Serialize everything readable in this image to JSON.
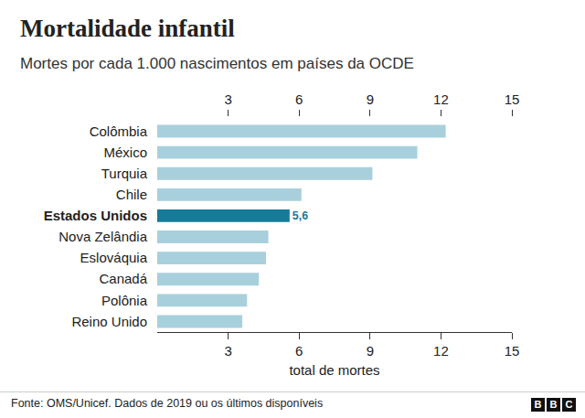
{
  "chart_data": {
    "type": "bar",
    "orientation": "horizontal",
    "title": "Mortalidade infantil",
    "subtitle": "Mortes por cada 1.000 nascimentos em países da OCDE",
    "x_label": "total de mortes",
    "source": "Fonte: OMS/Unicef. Dados de 2019 ou os últimos disponíveis",
    "logo": "BBC",
    "categories": [
      "Colômbia",
      "México",
      "Turquia",
      "Chile",
      "Estados Unidos",
      "Nova Zelândia",
      "Eslováquia",
      "Canadá",
      "Polônia",
      "Reino Unido"
    ],
    "values": [
      12.2,
      11.0,
      9.1,
      6.1,
      5.6,
      4.7,
      4.6,
      4.3,
      3.8,
      3.6
    ],
    "value_labels": [
      null,
      null,
      null,
      null,
      "5,6",
      null,
      null,
      null,
      null,
      null
    ],
    "colors": [
      "#a8d0dc",
      "#a8d0dc",
      "#a8d0dc",
      "#a8d0dc",
      "#167b99",
      "#a8d0dc",
      "#a8d0dc",
      "#a8d0dc",
      "#a8d0dc",
      "#a8d0dc"
    ],
    "xlim": [
      0,
      15
    ],
    "xticks": [
      3,
      6,
      9,
      12,
      15
    ],
    "grid": false,
    "data_labels": true
  }
}
